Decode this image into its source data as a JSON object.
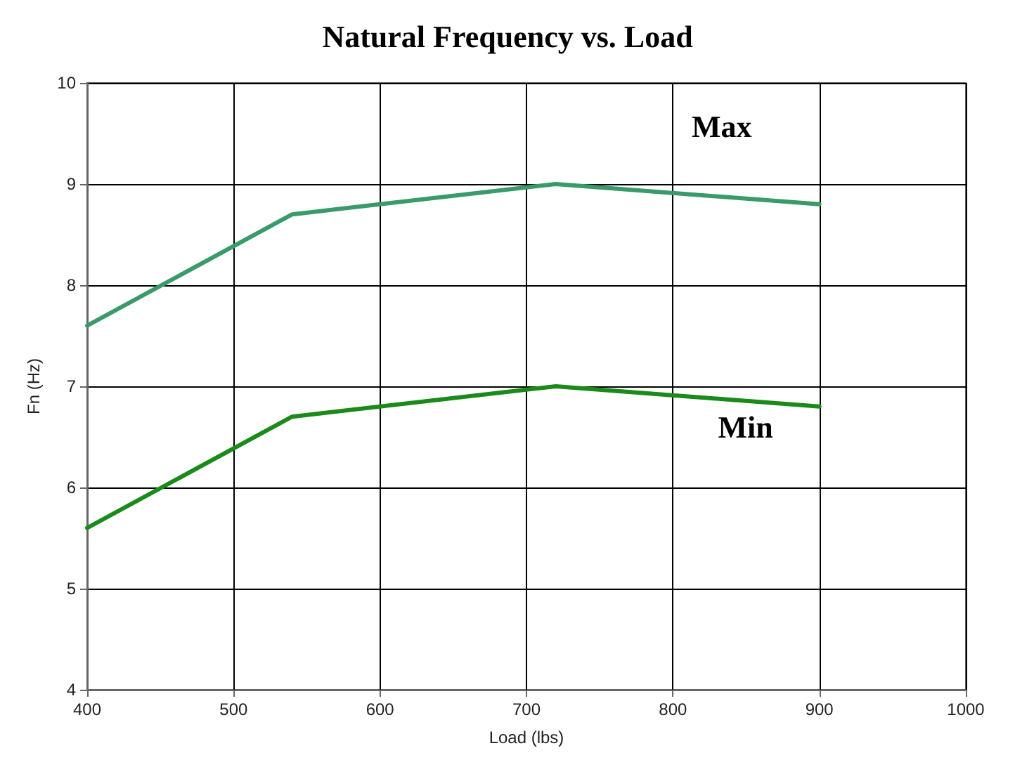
{
  "chart_data": {
    "type": "line",
    "title": "Natural Frequency vs. Load",
    "xlabel": "Load (lbs)",
    "ylabel": "Fn (Hz)",
    "x": [
      400,
      540,
      720,
      900
    ],
    "series": [
      {
        "name": "Max",
        "color": "#3a9a6a",
        "values": [
          7.6,
          8.7,
          9.0,
          8.8
        ]
      },
      {
        "name": "Min",
        "color": "#1a8a1a",
        "values": [
          5.6,
          6.7,
          7.0,
          6.8
        ]
      }
    ],
    "xlim": [
      400,
      1000
    ],
    "xticks": [
      400,
      500,
      600,
      700,
      800,
      900,
      1000
    ],
    "ylim": [
      4,
      10
    ],
    "yticks": [
      4,
      5,
      6,
      7,
      8,
      9,
      10
    ],
    "grid": true,
    "legend": false,
    "marker": "none",
    "line_style": "solid"
  }
}
